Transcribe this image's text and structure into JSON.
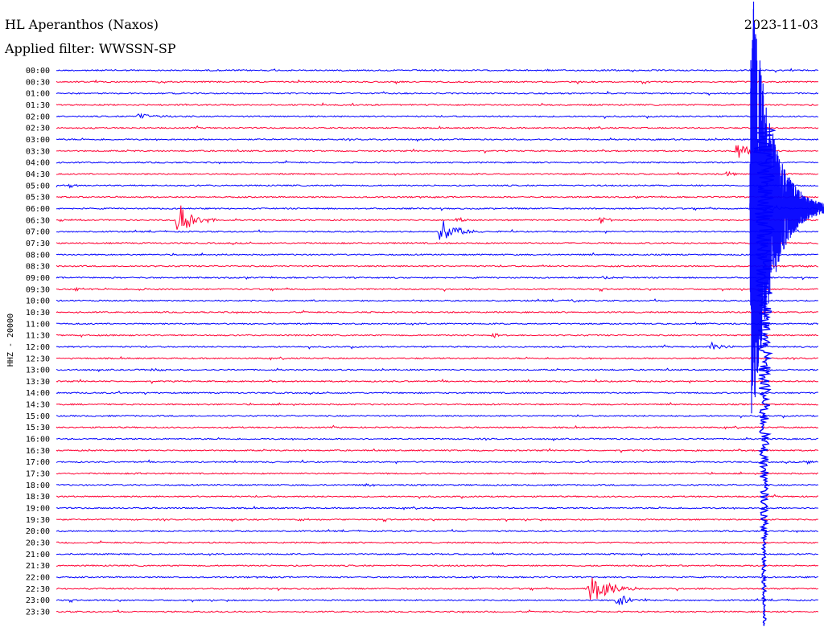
{
  "header": {
    "station": "HL Aperanthos (Naxos)",
    "date": "2023-11-03",
    "filter": "Applied filter: WWSSN-SP",
    "channel": "HHZ - 20000"
  },
  "chart_data": {
    "type": "line",
    "title": "HL Aperanthos (Naxos)",
    "subtitle": "Applied filter: WWSSN-SP",
    "date": "2023-11-03",
    "ylabel": "HHZ - 20000",
    "xlabel": "",
    "grid": false,
    "colors": {
      "even_rows": "#0000ff",
      "odd_rows": "#ff0033"
    },
    "rows": [
      "00:00",
      "00:30",
      "01:00",
      "01:30",
      "02:00",
      "02:30",
      "03:00",
      "03:30",
      "04:00",
      "04:30",
      "05:00",
      "05:30",
      "06:00",
      "06:30",
      "07:00",
      "07:30",
      "08:00",
      "08:30",
      "09:00",
      "09:30",
      "10:00",
      "10:30",
      "11:00",
      "11:30",
      "12:00",
      "12:30",
      "13:00",
      "13:30",
      "14:00",
      "14:30",
      "15:00",
      "15:30",
      "16:00",
      "16:30",
      "17:00",
      "17:30",
      "18:00",
      "18:30",
      "19:00",
      "19:30",
      "20:00",
      "20:30",
      "21:00",
      "21:30",
      "22:00",
      "22:30",
      "23:00",
      "23:30"
    ],
    "row_duration_min": 30,
    "events": [
      {
        "row": "00:30",
        "minute": 4.0,
        "amp": 0.25,
        "dur": 1.5
      },
      {
        "row": "02:00",
        "minute": 3.2,
        "amp": 0.45,
        "dur": 2.0
      },
      {
        "row": "03:30",
        "minute": 26.8,
        "amp": 1.6,
        "dur": 1.2
      },
      {
        "row": "04:30",
        "minute": 26.4,
        "amp": 0.5,
        "dur": 0.5
      },
      {
        "row": "05:00",
        "minute": 0.5,
        "amp": 0.3,
        "dur": 1.0
      },
      {
        "row": "06:00",
        "minute": 28.2,
        "amp": 0.8,
        "dur": 0.8
      },
      {
        "row": "06:30",
        "minute": 4.8,
        "amp": 3.2,
        "dur": 1.5
      },
      {
        "row": "06:30",
        "minute": 0.1,
        "amp": 0.3,
        "dur": 1.2
      },
      {
        "row": "06:30",
        "minute": 15.8,
        "amp": 0.6,
        "dur": 0.6
      },
      {
        "row": "06:30",
        "minute": 21.4,
        "amp": 0.9,
        "dur": 0.8
      },
      {
        "row": "07:00",
        "minute": 15.1,
        "amp": 2.6,
        "dur": 1.6
      },
      {
        "row": "08:30",
        "minute": 19.2,
        "amp": 0.25,
        "dur": 0.8
      },
      {
        "row": "09:00",
        "minute": 21.5,
        "amp": 0.5,
        "dur": 0.8
      },
      {
        "row": "09:30",
        "minute": 0.8,
        "amp": 0.4,
        "dur": 0.8
      },
      {
        "row": "09:30",
        "minute": 3.3,
        "amp": 0.3,
        "dur": 0.6
      },
      {
        "row": "10:00",
        "minute": 10.1,
        "amp": 0.4,
        "dur": 0.4
      },
      {
        "row": "10:00",
        "minute": 20.3,
        "amp": 0.6,
        "dur": 0.4
      },
      {
        "row": "11:30",
        "minute": 17.2,
        "amp": 0.5,
        "dur": 0.6
      },
      {
        "row": "12:00",
        "minute": 25.8,
        "amp": 0.7,
        "dur": 1.0
      },
      {
        "row": "12:30",
        "minute": 0.5,
        "amp": 0.3,
        "dur": 0.6
      },
      {
        "row": "13:00",
        "minute": 3.8,
        "amp": 0.4,
        "dur": 1.0
      },
      {
        "row": "14:00",
        "minute": 3.5,
        "amp": 0.3,
        "dur": 0.4
      },
      {
        "row": "17:00",
        "minute": 29.6,
        "amp": 0.5,
        "dur": 0.6
      },
      {
        "row": "17:30",
        "minute": 3.1,
        "amp": 0.3,
        "dur": 0.5
      },
      {
        "row": "18:00",
        "minute": 12.1,
        "amp": 0.25,
        "dur": 1.5
      },
      {
        "row": "19:30",
        "minute": 9.6,
        "amp": 0.25,
        "dur": 1.2
      },
      {
        "row": "22:30",
        "minute": 21.0,
        "amp": 3.0,
        "dur": 2.0
      },
      {
        "row": "23:00",
        "minute": 22.1,
        "amp": 1.2,
        "dur": 1.5
      }
    ],
    "mainshock": {
      "start_row": "02:30",
      "minute": 27.3,
      "amp": 22,
      "dur": 3.0
    }
  }
}
